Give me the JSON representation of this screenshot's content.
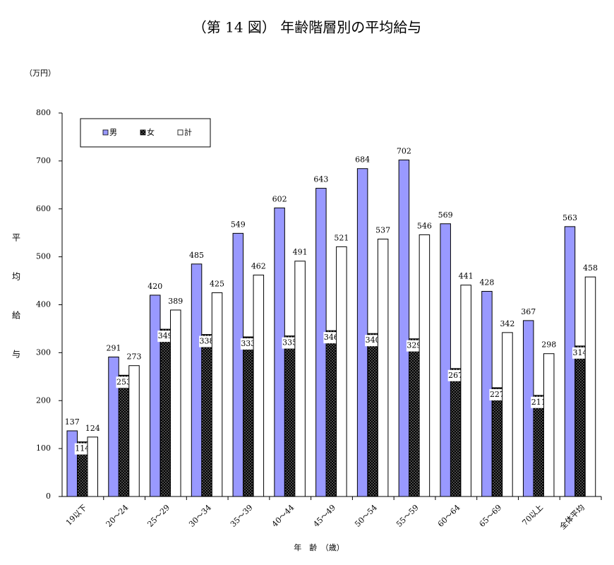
{
  "chart_data": {
    "type": "bar",
    "title": "（第 14 図） 年齢階層別の平均給与",
    "y_unit": "（万円）",
    "y_label": "平均給与",
    "x_label": "年　齢　（歳）",
    "categories": [
      "19以下",
      "20～24",
      "25～29",
      "30～34",
      "35～39",
      "40～44",
      "45～49",
      "50～54",
      "55～59",
      "60～64",
      "65～69",
      "70以上",
      "全体平均"
    ],
    "series": [
      {
        "name": "男",
        "color": "#9999ff",
        "values": [
          137,
          291,
          420,
          485,
          549,
          602,
          643,
          684,
          702,
          569,
          428,
          367,
          563
        ]
      },
      {
        "name": "女",
        "color": "#000000",
        "pattern": "dotted",
        "values": [
          114,
          253,
          349,
          338,
          333,
          335,
          346,
          340,
          329,
          267,
          227,
          211,
          314
        ]
      },
      {
        "name": "計",
        "color": "#ffffff",
        "values": [
          124,
          273,
          389,
          425,
          462,
          491,
          521,
          537,
          546,
          441,
          342,
          298,
          458
        ]
      }
    ],
    "ylim": [
      0,
      800
    ],
    "yticks": [
      0,
      100,
      200,
      300,
      400,
      500,
      600,
      700,
      800
    ],
    "grid": false,
    "legend": "upper left"
  }
}
